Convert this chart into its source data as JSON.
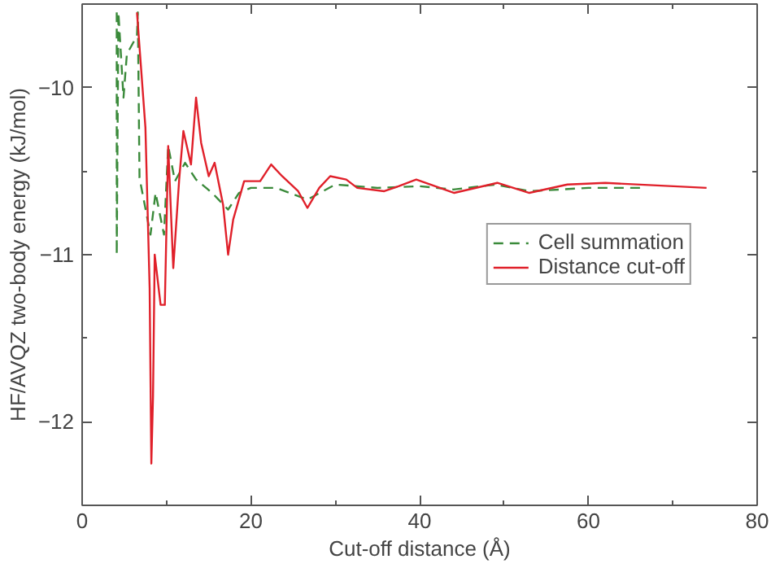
{
  "chart_data": {
    "type": "line",
    "xlabel": "Cut-off distance (Å)",
    "ylabel": "HF/AVQZ two-body energy (kJ/mol)",
    "xlim": [
      0,
      80
    ],
    "ylim": [
      -12.5,
      -9.5
    ],
    "xticks": [
      0,
      20,
      40,
      60,
      80
    ],
    "yticks": [
      -12,
      -11,
      -10
    ],
    "grid": false,
    "legend": "right",
    "marker": "none",
    "series": [
      {
        "name": "Cell summation",
        "color": "#3a8a3a",
        "line_style": "dashed",
        "x": [
          4.1,
          4.1,
          4.3,
          4.9,
          5.3,
          6.5,
          6.6,
          6.8,
          8.1,
          8.7,
          9.7,
          10.2,
          11.0,
          12.2,
          13.5,
          15.4,
          17.3,
          18.6,
          20,
          23,
          26.7,
          30,
          35,
          40,
          44,
          49,
          53,
          60,
          66.6
        ],
        "values": [
          -9.55,
          -11.0,
          -9.55,
          -10.06,
          -9.8,
          -9.69,
          -9.55,
          -10.54,
          -10.88,
          -10.63,
          -10.88,
          -10.35,
          -10.56,
          -10.45,
          -10.55,
          -10.63,
          -10.73,
          -10.63,
          -10.6,
          -10.6,
          -10.67,
          -10.58,
          -10.6,
          -10.59,
          -10.61,
          -10.58,
          -10.62,
          -10.6,
          -10.6
        ]
      },
      {
        "name": "Distance cut-off",
        "color": "#e0202a",
        "line_style": "solid",
        "x": [
          6.5,
          7.5,
          8.0,
          8.2,
          8.4,
          8.6,
          9.3,
          9.8,
          10.2,
          10.8,
          11.5,
          12.0,
          12.9,
          13.5,
          14.1,
          15.0,
          15.7,
          16.7,
          17.3,
          17.9,
          19.2,
          21.1,
          22.4,
          23.7,
          25.6,
          26.7,
          28.1,
          29.4,
          31.3,
          32.6,
          35.8,
          37.5,
          39.6,
          44.1,
          49.2,
          53,
          57.5,
          62,
          74
        ],
        "values": [
          -9.55,
          -10.24,
          -11.2,
          -12.25,
          -11.85,
          -11.0,
          -11.3,
          -11.3,
          -10.35,
          -11.08,
          -10.55,
          -10.26,
          -10.46,
          -10.06,
          -10.33,
          -10.53,
          -10.45,
          -10.7,
          -11.0,
          -10.79,
          -10.56,
          -10.56,
          -10.46,
          -10.53,
          -10.62,
          -10.72,
          -10.6,
          -10.53,
          -10.55,
          -10.6,
          -10.62,
          -10.59,
          -10.55,
          -10.63,
          -10.57,
          -10.63,
          -10.58,
          -10.57,
          -10.6
        ]
      }
    ]
  }
}
